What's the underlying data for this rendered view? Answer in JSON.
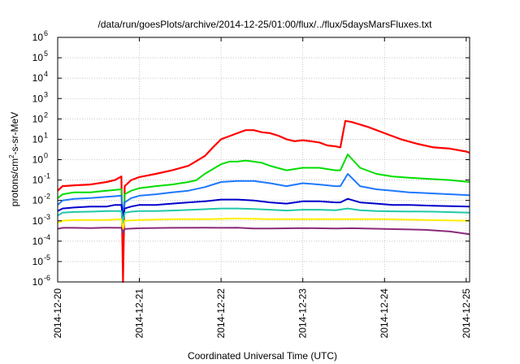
{
  "chart_data": {
    "type": "line",
    "title": "/data/run/goesPlots/archive/2014-12-25/01:00/flux/../flux/5daysMarsFluxes.txt",
    "xlabel": "Coordinated Universal Time (UTC)",
    "ylabel_base": "protons/cm",
    "ylabel_sup": "2",
    "ylabel_rest": "-s-sr-MeV",
    "yscale": "log",
    "ylim_exp": [
      -6,
      6
    ],
    "xlim": [
      "2014-12-20 00:00",
      "2014-12-25 01:00"
    ],
    "grid": true,
    "x_ticks": [
      "2014-12-20",
      "2014-12-21",
      "2014-12-22",
      "2014-12-23",
      "2014-12-24",
      "2014-12-25"
    ],
    "y_ticks": [
      {
        "base": "10",
        "exp": "-6"
      },
      {
        "base": "10",
        "exp": "-5"
      },
      {
        "base": "10",
        "exp": "-4"
      },
      {
        "base": "10",
        "exp": "-3"
      },
      {
        "base": "10",
        "exp": "-2"
      },
      {
        "base": "10",
        "exp": "-1"
      },
      {
        "base": "10",
        "exp": "0"
      },
      {
        "base": "10",
        "exp": "1"
      },
      {
        "base": "10",
        "exp": "2"
      },
      {
        "base": "10",
        "exp": "3"
      },
      {
        "base": "10",
        "exp": "4"
      },
      {
        "base": "10",
        "exp": "5"
      },
      {
        "base": "10",
        "exp": "6"
      }
    ],
    "x_note": "x values are days elapsed since 2014-12-20 00:00 UTC",
    "series": [
      {
        "color": "#ff0000",
        "points": [
          [
            0.0,
            0.03
          ],
          [
            0.06,
            0.05
          ],
          [
            0.2,
            0.055
          ],
          [
            0.4,
            0.06
          ],
          [
            0.6,
            0.08
          ],
          [
            0.7,
            0.1
          ],
          [
            0.78,
            0.15
          ],
          [
            0.8,
            1e-06
          ],
          [
            0.82,
            0.05
          ],
          [
            0.9,
            0.1
          ],
          [
            1.0,
            0.14
          ],
          [
            1.2,
            0.2
          ],
          [
            1.4,
            0.3
          ],
          [
            1.6,
            0.5
          ],
          [
            1.8,
            1.5
          ],
          [
            1.9,
            4
          ],
          [
            2.0,
            10
          ],
          [
            2.2,
            20
          ],
          [
            2.3,
            28
          ],
          [
            2.4,
            28
          ],
          [
            2.5,
            22
          ],
          [
            2.6,
            20
          ],
          [
            2.7,
            15
          ],
          [
            2.8,
            10
          ],
          [
            2.9,
            8
          ],
          [
            3.0,
            9
          ],
          [
            3.1,
            8
          ],
          [
            3.2,
            7
          ],
          [
            3.3,
            5
          ],
          [
            3.4,
            4.5
          ],
          [
            3.46,
            4
          ],
          [
            3.52,
            80
          ],
          [
            3.6,
            70
          ],
          [
            3.8,
            40
          ],
          [
            4.0,
            20
          ],
          [
            4.2,
            10
          ],
          [
            4.4,
            6
          ],
          [
            4.6,
            4
          ],
          [
            4.8,
            3.5
          ],
          [
            5.0,
            2.5
          ],
          [
            5.04,
            2.2
          ]
        ]
      },
      {
        "color": "#00dd00",
        "points": [
          [
            0.0,
            0.013
          ],
          [
            0.06,
            0.02
          ],
          [
            0.2,
            0.025
          ],
          [
            0.4,
            0.025
          ],
          [
            0.6,
            0.03
          ],
          [
            0.7,
            0.033
          ],
          [
            0.78,
            0.035
          ],
          [
            0.8,
            0.0005
          ],
          [
            0.82,
            0.02
          ],
          [
            0.9,
            0.03
          ],
          [
            1.0,
            0.04
          ],
          [
            1.2,
            0.05
          ],
          [
            1.4,
            0.06
          ],
          [
            1.6,
            0.08
          ],
          [
            1.7,
            0.1
          ],
          [
            1.8,
            0.2
          ],
          [
            2.0,
            0.6
          ],
          [
            2.1,
            0.8
          ],
          [
            2.2,
            0.8
          ],
          [
            2.3,
            0.9
          ],
          [
            2.4,
            0.8
          ],
          [
            2.5,
            0.7
          ],
          [
            2.6,
            0.5
          ],
          [
            2.8,
            0.3
          ],
          [
            3.0,
            0.4
          ],
          [
            3.2,
            0.4
          ],
          [
            3.4,
            0.3
          ],
          [
            3.46,
            0.3
          ],
          [
            3.55,
            1.8
          ],
          [
            3.7,
            0.4
          ],
          [
            3.9,
            0.2
          ],
          [
            4.1,
            0.15
          ],
          [
            4.3,
            0.13
          ],
          [
            4.6,
            0.11
          ],
          [
            4.8,
            0.1
          ],
          [
            5.04,
            0.08
          ]
        ]
      },
      {
        "color": "#1e78ff",
        "points": [
          [
            0.0,
            0.006
          ],
          [
            0.06,
            0.01
          ],
          [
            0.2,
            0.012
          ],
          [
            0.4,
            0.013
          ],
          [
            0.6,
            0.015
          ],
          [
            0.7,
            0.016
          ],
          [
            0.78,
            0.017
          ],
          [
            0.8,
            0.002
          ],
          [
            0.82,
            0.008
          ],
          [
            0.9,
            0.013
          ],
          [
            1.0,
            0.017
          ],
          [
            1.2,
            0.02
          ],
          [
            1.4,
            0.025
          ],
          [
            1.6,
            0.03
          ],
          [
            1.8,
            0.045
          ],
          [
            2.0,
            0.08
          ],
          [
            2.2,
            0.09
          ],
          [
            2.4,
            0.09
          ],
          [
            2.6,
            0.07
          ],
          [
            2.8,
            0.05
          ],
          [
            3.0,
            0.07
          ],
          [
            3.2,
            0.06
          ],
          [
            3.4,
            0.05
          ],
          [
            3.46,
            0.05
          ],
          [
            3.55,
            0.2
          ],
          [
            3.7,
            0.05
          ],
          [
            3.9,
            0.035
          ],
          [
            4.1,
            0.03
          ],
          [
            4.3,
            0.025
          ],
          [
            4.6,
            0.022
          ],
          [
            5.04,
            0.018
          ]
        ]
      },
      {
        "color": "#0000cc",
        "points": [
          [
            0.0,
            0.003
          ],
          [
            0.06,
            0.004
          ],
          [
            0.2,
            0.0045
          ],
          [
            0.4,
            0.005
          ],
          [
            0.6,
            0.005
          ],
          [
            0.7,
            0.006
          ],
          [
            0.78,
            0.006
          ],
          [
            0.8,
            0.0015
          ],
          [
            0.82,
            0.004
          ],
          [
            0.9,
            0.005
          ],
          [
            1.0,
            0.006
          ],
          [
            1.2,
            0.006
          ],
          [
            1.4,
            0.007
          ],
          [
            1.6,
            0.008
          ],
          [
            1.8,
            0.009
          ],
          [
            2.0,
            0.011
          ],
          [
            2.2,
            0.011
          ],
          [
            2.4,
            0.01
          ],
          [
            2.6,
            0.008
          ],
          [
            2.8,
            0.007
          ],
          [
            3.0,
            0.009
          ],
          [
            3.2,
            0.009
          ],
          [
            3.4,
            0.008
          ],
          [
            3.46,
            0.008
          ],
          [
            3.55,
            0.012
          ],
          [
            3.7,
            0.008
          ],
          [
            3.9,
            0.007
          ],
          [
            4.1,
            0.006
          ],
          [
            4.3,
            0.006
          ],
          [
            4.6,
            0.0055
          ],
          [
            5.04,
            0.005
          ]
        ]
      },
      {
        "color": "#20c8a8",
        "points": [
          [
            0.0,
            0.0018
          ],
          [
            0.06,
            0.0025
          ],
          [
            0.2,
            0.0027
          ],
          [
            0.4,
            0.0028
          ],
          [
            0.6,
            0.003
          ],
          [
            0.7,
            0.003
          ],
          [
            0.78,
            0.003
          ],
          [
            0.8,
            0.0008
          ],
          [
            0.82,
            0.0025
          ],
          [
            0.9,
            0.0028
          ],
          [
            1.0,
            0.003
          ],
          [
            1.2,
            0.003
          ],
          [
            1.4,
            0.0032
          ],
          [
            1.6,
            0.0034
          ],
          [
            1.8,
            0.0037
          ],
          [
            2.0,
            0.004
          ],
          [
            2.2,
            0.004
          ],
          [
            2.4,
            0.0038
          ],
          [
            2.6,
            0.0035
          ],
          [
            2.8,
            0.0032
          ],
          [
            3.0,
            0.0035
          ],
          [
            3.2,
            0.0035
          ],
          [
            3.4,
            0.0033
          ],
          [
            3.55,
            0.004
          ],
          [
            3.7,
            0.0033
          ],
          [
            3.9,
            0.003
          ],
          [
            4.2,
            0.0029
          ],
          [
            4.6,
            0.0028
          ],
          [
            5.04,
            0.0025
          ]
        ]
      },
      {
        "color": "#ffee00",
        "points": [
          [
            0.0,
            0.0008
          ],
          [
            0.06,
            0.001
          ],
          [
            0.2,
            0.0011
          ],
          [
            0.4,
            0.0011
          ],
          [
            0.6,
            0.0011
          ],
          [
            0.78,
            0.0012
          ],
          [
            0.8,
            0.0004
          ],
          [
            0.82,
            0.001
          ],
          [
            1.0,
            0.0011
          ],
          [
            1.4,
            0.0012
          ],
          [
            1.8,
            0.0012
          ],
          [
            2.2,
            0.0013
          ],
          [
            2.6,
            0.0012
          ],
          [
            3.0,
            0.0012
          ],
          [
            3.4,
            0.0012
          ],
          [
            3.6,
            0.0012
          ],
          [
            4.0,
            0.0012
          ],
          [
            4.5,
            0.0011
          ],
          [
            5.04,
            0.001
          ]
        ]
      },
      {
        "color": "#8b2a7a",
        "points": [
          [
            0.0,
            0.0004
          ],
          [
            0.06,
            0.00045
          ],
          [
            0.2,
            0.00045
          ],
          [
            0.4,
            0.00044
          ],
          [
            0.6,
            0.00046
          ],
          [
            0.78,
            0.00045
          ],
          [
            0.8,
            0.00025
          ],
          [
            0.82,
            0.0004
          ],
          [
            1.0,
            0.00043
          ],
          [
            1.4,
            0.00045
          ],
          [
            1.8,
            0.00046
          ],
          [
            2.0,
            0.00045
          ],
          [
            2.2,
            0.00046
          ],
          [
            2.4,
            0.00042
          ],
          [
            2.6,
            0.00042
          ],
          [
            3.0,
            0.00044
          ],
          [
            3.4,
            0.00042
          ],
          [
            3.6,
            0.00043
          ],
          [
            4.0,
            0.0004
          ],
          [
            4.5,
            0.00036
          ],
          [
            4.8,
            0.0003
          ],
          [
            5.04,
            0.00022
          ]
        ]
      }
    ]
  }
}
